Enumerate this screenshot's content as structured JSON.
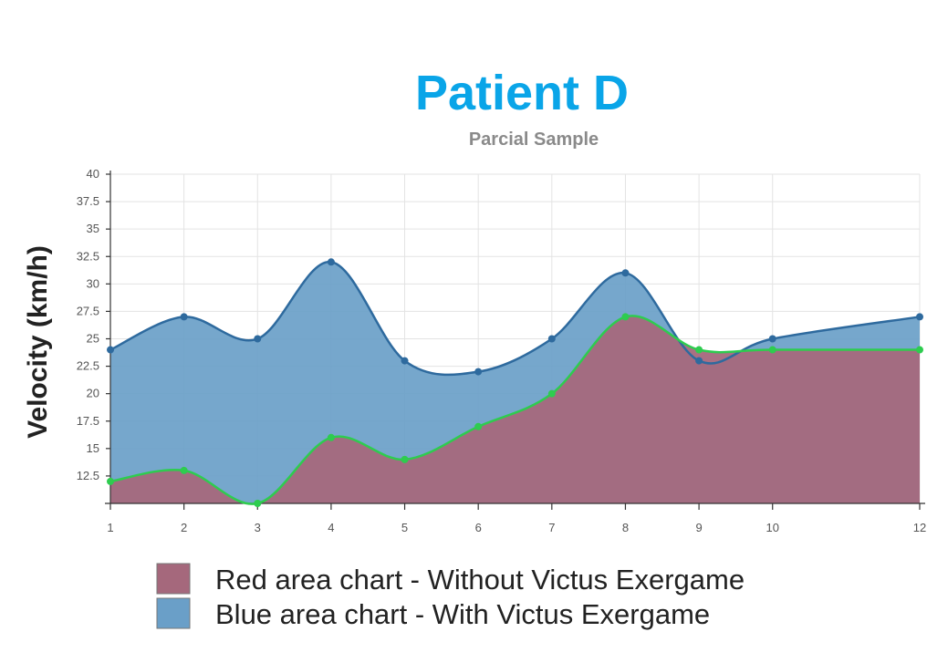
{
  "chart_data": {
    "type": "area",
    "title": "Patient D",
    "subtitle": "Parcial Sample",
    "xlabel": "",
    "ylabel": "Velocity (km/h)",
    "x": [
      1,
      2,
      3,
      4,
      5,
      6,
      7,
      8,
      9,
      10,
      12
    ],
    "xlim": [
      1,
      12
    ],
    "ylim": [
      10,
      40
    ],
    "yticks": [
      12.5,
      15,
      17.5,
      20,
      22.5,
      25,
      27.5,
      30,
      32.5,
      35,
      37.5,
      40
    ],
    "grid": true,
    "legend_position": "bottom",
    "series": [
      {
        "name": "Blue area chart - With Victus Exergame",
        "color": "#6a9fc8",
        "line_color": "#2e6a9e",
        "marker_color": "#2e6a9e",
        "values": [
          24,
          27,
          25,
          32,
          23,
          22,
          25,
          31,
          23,
          25,
          27
        ]
      },
      {
        "name": "Red area chart - Without Victus Exergame",
        "color": "#a5687c",
        "line_color": "#2ecc4f",
        "marker_color": "#2ecc4f",
        "values": [
          12,
          13,
          10,
          16,
          14,
          17,
          20,
          27,
          24,
          24,
          24
        ]
      }
    ]
  }
}
